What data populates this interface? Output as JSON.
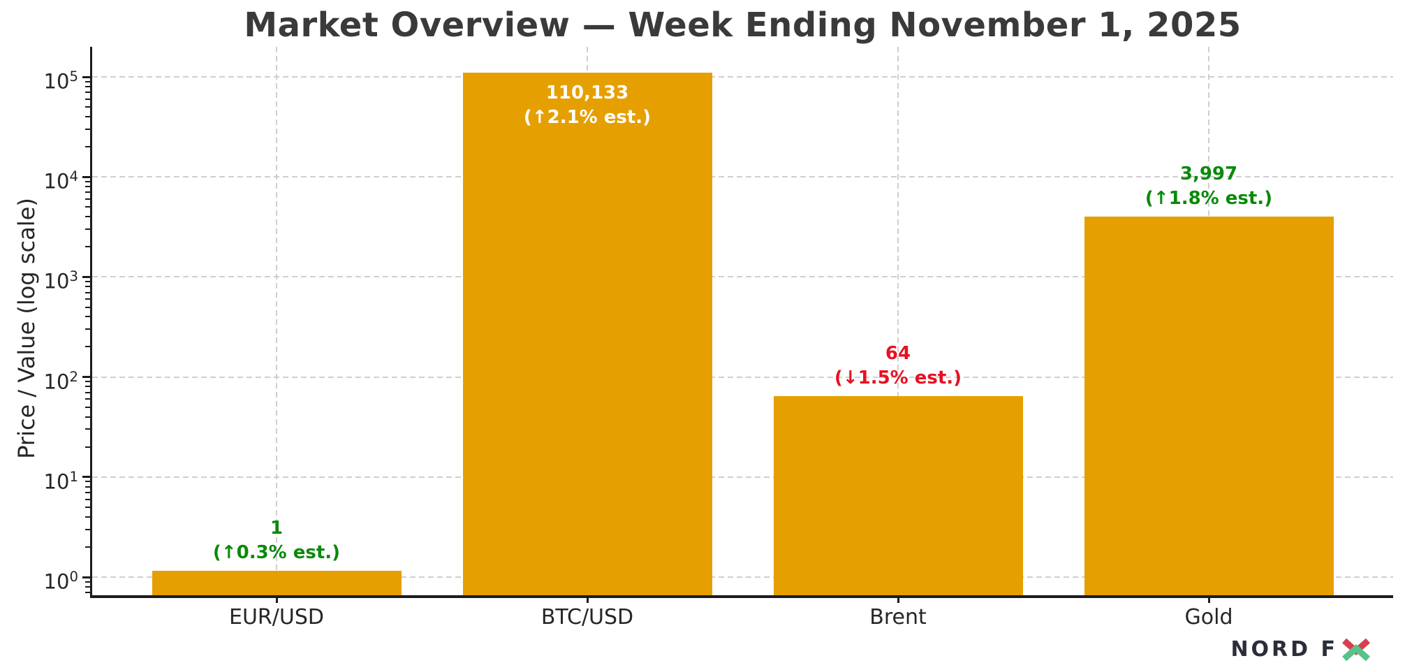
{
  "chart_data": {
    "type": "bar",
    "title": "Market Overview — Week Ending November 1, 2025",
    "ylabel": "Price / Value (log scale)",
    "xlabel": "",
    "yscale": "log",
    "ylim": [
      0.66,
      200000
    ],
    "grid": "dashed, horizontal at decades and vertical at category centers",
    "legend": "none",
    "categories": [
      "EUR/USD",
      "BTC/USD",
      "Brent",
      "Gold"
    ],
    "values": [
      1.16,
      110133,
      64,
      3997
    ],
    "bar_color": "#E69F00",
    "value_labels": [
      {
        "value": "1",
        "change": "(↑0.3% est.)",
        "direction": "up",
        "color": "#0a8a0a",
        "placement": "above"
      },
      {
        "value": "110,133",
        "change": "(↑2.1% est.)",
        "direction": "up",
        "color": "#ffffff",
        "placement": "inside"
      },
      {
        "value": "64",
        "change": "(↓1.5% est.)",
        "direction": "down",
        "color": "#e81123",
        "placement": "above"
      },
      {
        "value": "3,997",
        "change": "(↑1.8% est.)",
        "direction": "up",
        "color": "#0a8a0a",
        "placement": "above"
      }
    ],
    "y_ticks": [
      {
        "base": "10",
        "exp": "0",
        "value": 1
      },
      {
        "base": "10",
        "exp": "1",
        "value": 10
      },
      {
        "base": "10",
        "exp": "2",
        "value": 100
      },
      {
        "base": "10",
        "exp": "3",
        "value": 1000
      },
      {
        "base": "10",
        "exp": "4",
        "value": 10000
      },
      {
        "base": "10",
        "exp": "5",
        "value": 100000
      }
    ]
  },
  "colors": {
    "bar": "#E69F00",
    "grid": "#cfcfcf",
    "axis": "#1c1c1c",
    "title_text": "#3a3a3a",
    "tick_text": "#262626",
    "label_up_green": "#0a8a0a",
    "label_down_red": "#e81123",
    "label_inside_white": "#ffffff",
    "logo_text": "#2b2d39",
    "logo_red": "#d6404f",
    "logo_green": "#57c38b"
  },
  "logo": {
    "brand": "NORD FX",
    "text_part": "NORD F"
  }
}
